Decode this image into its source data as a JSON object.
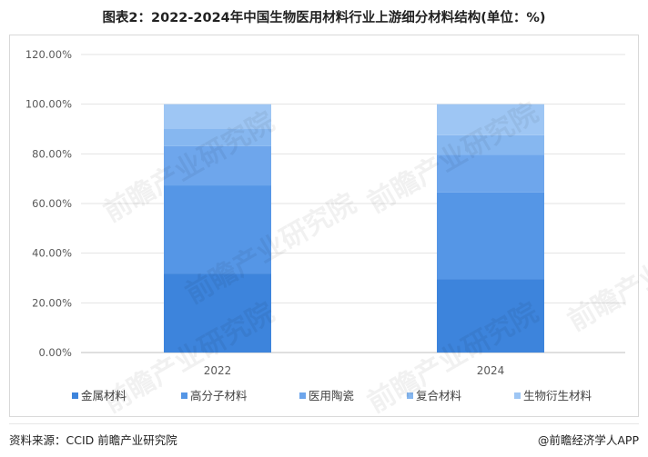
{
  "title": "图表2：2022-2024年中国生物医用材料行业上游细分材料结构(单位：%)",
  "watermark": "前瞻产业研究院",
  "footer": {
    "source": "资料来源：CCID 前瞻产业研究院",
    "brand": "@前瞻经济学人APP"
  },
  "chart_data": {
    "type": "bar",
    "stacked": true,
    "categories": [
      "2022",
      "2024"
    ],
    "y_ticks": [
      "0.00%",
      "20.00%",
      "40.00%",
      "60.00%",
      "80.00%",
      "100.00%",
      "120.00%"
    ],
    "ylim": [
      0,
      120
    ],
    "grid": true,
    "legend_position": "bottom",
    "series": [
      {
        "name": "金属材料",
        "color": "#3d84dc",
        "values": [
          31.8,
          29.6
        ]
      },
      {
        "name": "高分子材料",
        "color": "#5596e6",
        "values": [
          35.5,
          34.9
        ]
      },
      {
        "name": "医用陶瓷",
        "color": "#6ea6ec",
        "values": [
          15.8,
          15.2
        ]
      },
      {
        "name": "复合材料",
        "color": "#86b7f0",
        "values": [
          6.9,
          7.8
        ]
      },
      {
        "name": "生物衍生材料",
        "color": "#9ec6f4",
        "values": [
          10.0,
          12.5
        ]
      }
    ]
  }
}
